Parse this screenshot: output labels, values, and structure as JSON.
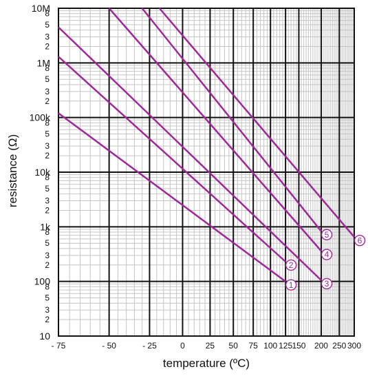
{
  "chart_data": {
    "type": "line",
    "title": "",
    "xlabel": "temperature (ºC)",
    "ylabel": "resistance (Ω)",
    "x_scale": "reciprocal",
    "y_scale": "log",
    "xlim": [
      -75,
      300
    ],
    "ylim": [
      10,
      10000000
    ],
    "grid": true,
    "x_ticks": [
      -75,
      -50,
      -25,
      0,
      25,
      50,
      75,
      100,
      125,
      150,
      200,
      250,
      300
    ],
    "x_tick_labels": [
      "- 75",
      "- 50",
      "- 25",
      "0",
      "25",
      "50",
      "75",
      "100",
      "125",
      "150",
      "200",
      "250",
      "300"
    ],
    "y_major_ticks": [
      10,
      100,
      1000,
      10000,
      100000,
      1000000,
      10000000
    ],
    "y_major_labels": [
      "10",
      "100",
      "1k",
      "10k",
      "100k",
      "1M",
      "10M"
    ],
    "y_minor_labels": [
      "2",
      "3",
      "5",
      "8"
    ],
    "line_color": "#a0279b",
    "series": [
      {
        "name": "1",
        "x": [
          -75,
          125
        ],
        "y": [
          120000,
          100
        ]
      },
      {
        "name": "2",
        "x": [
          -75,
          125
        ],
        "y": [
          1300000,
          230
        ]
      },
      {
        "name": "3",
        "x": [
          -75,
          200
        ],
        "y": [
          4500000,
          105
        ]
      },
      {
        "name": "4",
        "x": [
          -50,
          200
        ],
        "y": [
          10000000,
          360
        ]
      },
      {
        "name": "5",
        "x": [
          -30,
          200
        ],
        "y": [
          10000000,
          830
        ]
      },
      {
        "name": "6",
        "x": [
          -18,
          300
        ],
        "y": [
          10000000,
          650
        ]
      }
    ]
  }
}
